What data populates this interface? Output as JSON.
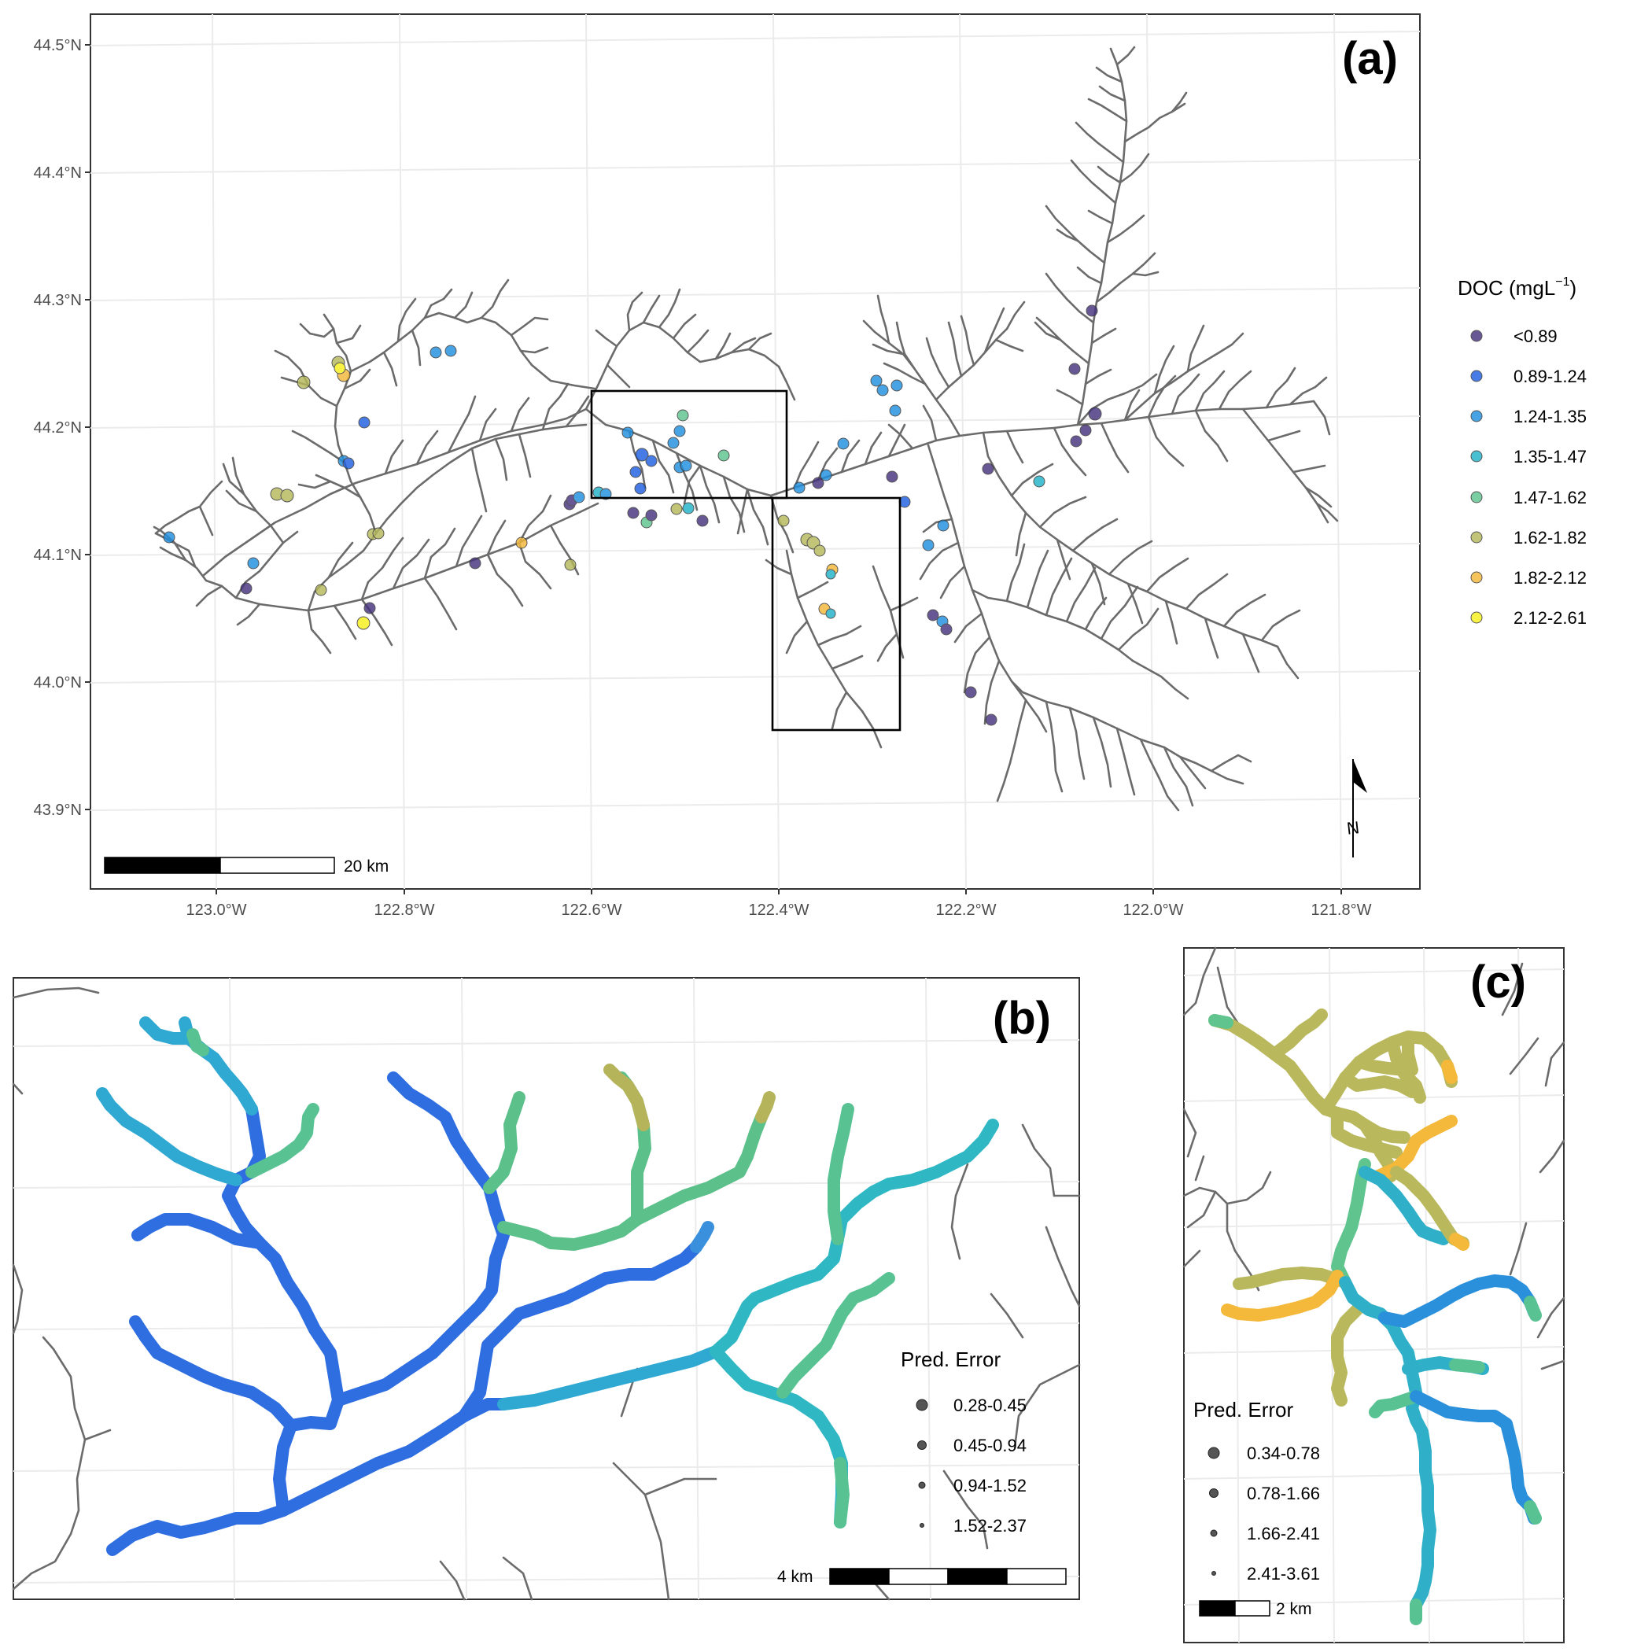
{
  "panel_a": {
    "tag": "(a)",
    "lat_ticks": [
      "44.5°N",
      "44.4°N",
      "44.3°N",
      "44.2°N",
      "44.1°N",
      "44.0°N",
      "43.9°N"
    ],
    "lon_ticks": [
      "123.0°W",
      "122.8°W",
      "122.6°W",
      "122.4°W",
      "122.2°W",
      "122.0°W",
      "121.8°W"
    ],
    "scale_label": "20 km",
    "north_label": "N",
    "legend": {
      "title_main": "DOC (mgL",
      "title_sup": "−1",
      "title_end": ")",
      "classes": [
        {
          "label": "<0.89",
          "color": "#46337e"
        },
        {
          "label": "0.89-1.24",
          "color": "#1f5fe0"
        },
        {
          "label": "1.24-1.35",
          "color": "#2090e0"
        },
        {
          "label": "1.35-1.47",
          "color": "#22b3c8"
        },
        {
          "label": "1.47-1.62",
          "color": "#5fc48e"
        },
        {
          "label": "1.62-1.82",
          "color": "#b5b85a"
        },
        {
          "label": "1.82-2.12",
          "color": "#f4b83a"
        },
        {
          "label": "2.12-2.61",
          "color": "#f7f01c"
        }
      ]
    }
  },
  "panel_b": {
    "tag": "(b)",
    "legend_title": "Pred. Error",
    "legend_items": [
      "0.28-0.45",
      "0.45-0.94",
      "0.94-1.52",
      "1.52-2.37"
    ],
    "scale_label": "4 km"
  },
  "panel_c": {
    "tag": "(c)",
    "legend_title": "Pred. Error",
    "legend_items": [
      "0.34-0.78",
      "0.78-1.66",
      "1.66-2.41",
      "2.41-3.61"
    ],
    "scale_label": "2 km"
  }
}
